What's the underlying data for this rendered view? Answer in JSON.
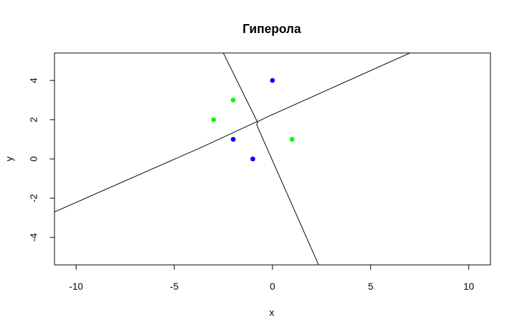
{
  "chart_data": {
    "type": "scatter",
    "title": "Гиперола",
    "xlabel": "x",
    "ylabel": "y",
    "xlim": [
      -11.1,
      11.1
    ],
    "ylim": [
      -5.4,
      5.4
    ],
    "x_ticks": [
      -10,
      -5,
      0,
      5,
      10
    ],
    "y_ticks": [
      -4,
      -2,
      0,
      2,
      4
    ],
    "grid": false,
    "series": [
      {
        "color": "#0000ff",
        "points": [
          [
            0,
            4
          ],
          [
            -2,
            1
          ],
          [
            -1,
            0
          ]
        ]
      },
      {
        "color": "#00ff00",
        "points": [
          [
            -2,
            3
          ],
          [
            -3,
            2
          ],
          [
            1,
            1
          ]
        ]
      }
    ],
    "curves": [
      {
        "color": "#000000",
        "points": [
          [
            -11.1,
            -2.7
          ],
          [
            -3.6,
            0.6
          ],
          [
            -0.9,
            1.85
          ],
          [
            -0.65,
            1.95
          ],
          [
            -0.35,
            2.1
          ],
          [
            7.0,
            5.4
          ]
        ]
      },
      {
        "color": "#000000",
        "points": [
          [
            -2.5,
            5.4
          ],
          [
            -0.85,
            2.05
          ],
          [
            -0.75,
            1.85
          ],
          [
            -0.8,
            1.75
          ],
          [
            -0.7,
            1.5
          ],
          [
            2.35,
            -5.4
          ]
        ]
      }
    ]
  }
}
